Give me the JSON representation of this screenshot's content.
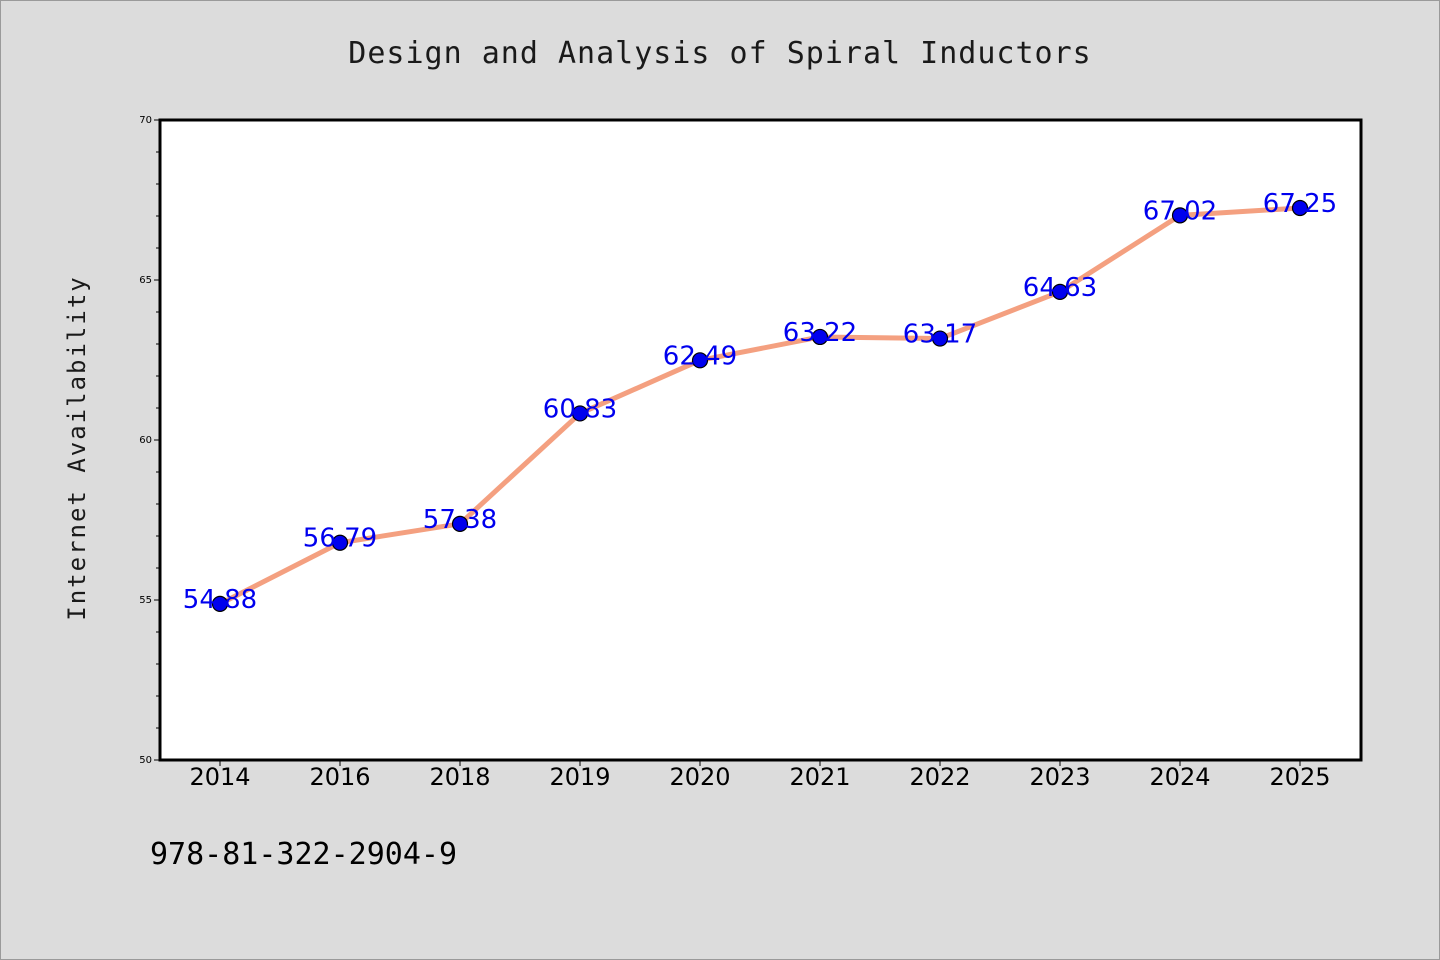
{
  "chart_data": {
    "type": "line",
    "title": "Design and Analysis of Spiral Inductors",
    "xlabel": "",
    "ylabel": "Internet Availability",
    "categories": [
      "2014",
      "2016",
      "2018",
      "2019",
      "2020",
      "2021",
      "2022",
      "2023",
      "2024",
      "2025"
    ],
    "series": [
      {
        "values": [
          54.88,
          56.79,
          57.38,
          60.83,
          62.49,
          63.22,
          63.17,
          64.63,
          67.02,
          67.25
        ],
        "labels": [
          "54.88",
          "56.79",
          "57.38",
          "60.83",
          "62.49",
          "63.22",
          "63.17",
          "64.63",
          "67.02",
          "67.25"
        ],
        "line_color": "#f4a080",
        "marker_color": "#0000ee"
      }
    ],
    "ylim": [
      50,
      70
    ],
    "yticks": [
      "50",
      "55",
      "60",
      "65",
      "70"
    ],
    "grid": false,
    "legend": "none"
  },
  "footer": {
    "isbn": "978-81-322-2904-9"
  },
  "colors": {
    "background": "#dcdcdc",
    "plot_background": "#ffffff",
    "data_label": "#0000ee"
  }
}
